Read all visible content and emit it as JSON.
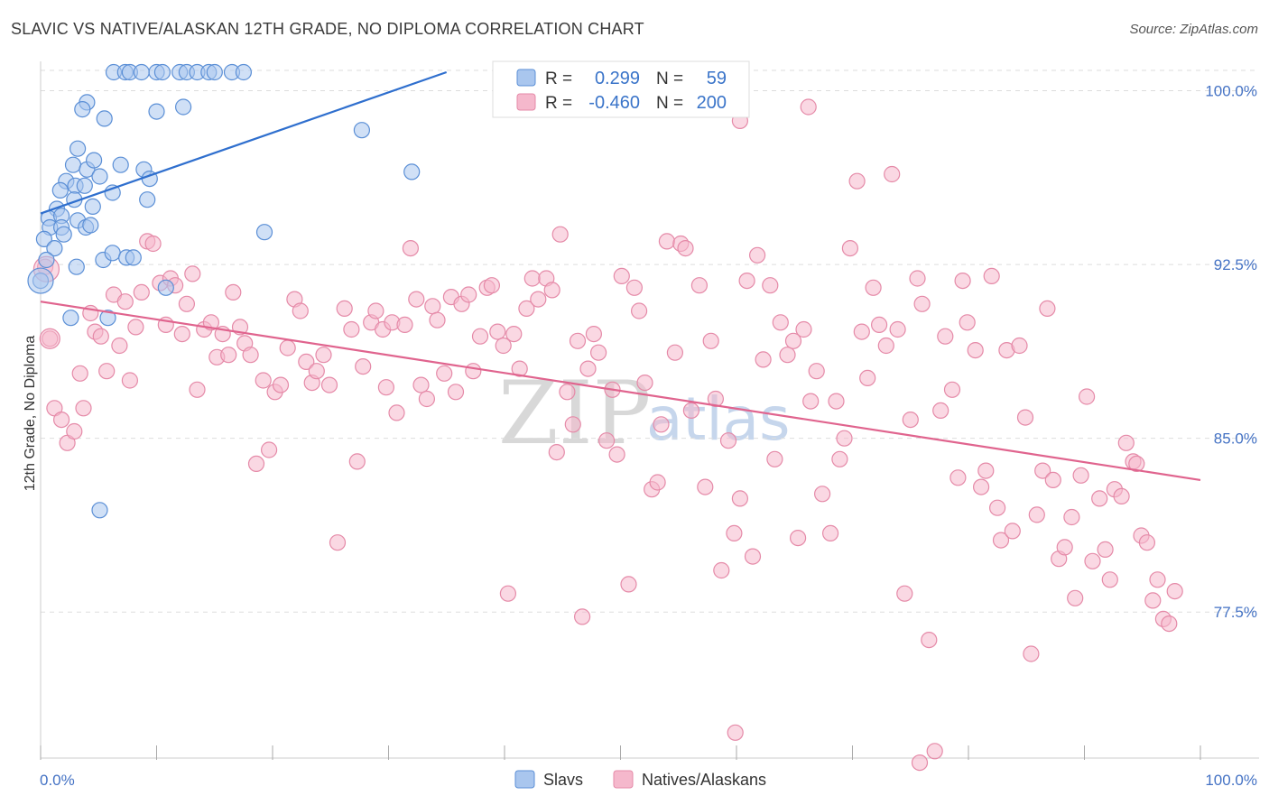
{
  "title": "SLAVIC VS NATIVE/ALASKAN 12TH GRADE, NO DIPLOMA CORRELATION CHART",
  "source": "Source: ZipAtlas.com",
  "colors": {
    "slavs_fill": "#a9c6ee",
    "slavs_stroke": "#5b8fd6",
    "slavs_line": "#2f6fce",
    "natives_fill": "#f5b8cc",
    "natives_stroke": "#e58aa8",
    "natives_line": "#e0648e",
    "grid": "#dddddd",
    "tick_label": "#4472c4"
  },
  "chart_data": {
    "type": "scatter",
    "title": "SLAVIC VS NATIVE/ALASKAN 12TH GRADE, NO DIPLOMA CORRELATION CHART",
    "xlabel": "",
    "ylabel": "12th Grade, No Diploma",
    "xlim": [
      0,
      100
    ],
    "ylim": [
      71.2,
      100.8
    ],
    "x_tick_labels": [
      "0.0%",
      "100.0%"
    ],
    "y_ticks": [
      77.5,
      85.0,
      92.5,
      100.0
    ],
    "y_tick_labels": [
      "77.5%",
      "85.0%",
      "92.5%",
      "100.0%"
    ],
    "legend": [
      {
        "label": "Slavs",
        "r_label": "R =",
        "r": "0.299",
        "n_label": "N =",
        "n": "59"
      },
      {
        "label": "Natives/Alaskans",
        "r_label": "R =",
        "r": "-0.460",
        "n_label": "N =",
        "n": "200"
      }
    ],
    "watermark": {
      "zip": "ZIP",
      "atlas": "atlas"
    },
    "series": [
      {
        "name": "Slavs",
        "trend": [
          [
            0,
            94.7
          ],
          [
            35,
            100.8
          ]
        ],
        "points": [
          [
            6.3,
            100.8
          ],
          [
            7.3,
            100.8
          ],
          [
            7.7,
            100.8
          ],
          [
            8.7,
            100.8
          ],
          [
            10.0,
            100.8
          ],
          [
            10.5,
            100.8
          ],
          [
            12.0,
            100.8
          ],
          [
            12.6,
            100.8
          ],
          [
            13.5,
            100.8
          ],
          [
            14.5,
            100.8
          ],
          [
            15.0,
            100.8
          ],
          [
            16.5,
            100.8
          ],
          [
            17.5,
            100.8
          ],
          [
            4.0,
            99.5
          ],
          [
            3.6,
            99.2
          ],
          [
            5.5,
            98.8
          ],
          [
            10.0,
            99.1
          ],
          [
            12.3,
            99.3
          ],
          [
            27.7,
            98.3
          ],
          [
            3.2,
            97.5
          ],
          [
            2.8,
            96.8
          ],
          [
            4.0,
            96.6
          ],
          [
            4.6,
            97.0
          ],
          [
            6.9,
            96.8
          ],
          [
            8.9,
            96.6
          ],
          [
            9.4,
            96.2
          ],
          [
            32.0,
            96.5
          ],
          [
            2.2,
            96.1
          ],
          [
            1.7,
            95.7
          ],
          [
            3.0,
            95.9
          ],
          [
            3.8,
            95.9
          ],
          [
            5.1,
            96.3
          ],
          [
            6.2,
            95.6
          ],
          [
            2.9,
            95.3
          ],
          [
            9.2,
            95.3
          ],
          [
            1.4,
            94.9
          ],
          [
            0.7,
            94.5
          ],
          [
            1.8,
            94.6
          ],
          [
            4.5,
            95.0
          ],
          [
            3.2,
            94.4
          ],
          [
            3.9,
            94.1
          ],
          [
            4.3,
            94.2
          ],
          [
            0.8,
            94.1
          ],
          [
            1.8,
            94.1
          ],
          [
            2.0,
            93.8
          ],
          [
            19.3,
            93.9
          ],
          [
            0.3,
            93.6
          ],
          [
            1.2,
            93.2
          ],
          [
            0.5,
            92.7
          ],
          [
            5.4,
            92.7
          ],
          [
            6.2,
            93.0
          ],
          [
            7.4,
            92.8
          ],
          [
            8.0,
            92.8
          ],
          [
            3.1,
            92.4
          ],
          [
            0.0,
            91.8
          ],
          [
            10.8,
            91.5
          ],
          [
            2.6,
            90.2
          ],
          [
            5.8,
            90.2
          ],
          [
            5.1,
            81.9
          ]
        ]
      },
      {
        "name": "Natives/Alaskans",
        "trend": [
          [
            0,
            90.9
          ],
          [
            100,
            83.2
          ]
        ],
        "points": [
          [
            0.4,
            92.4
          ],
          [
            0.8,
            89.3
          ],
          [
            1.2,
            86.3
          ],
          [
            1.8,
            85.8
          ],
          [
            2.3,
            84.8
          ],
          [
            2.9,
            85.3
          ],
          [
            3.4,
            87.8
          ],
          [
            3.7,
            86.3
          ],
          [
            4.3,
            90.4
          ],
          [
            4.7,
            89.6
          ],
          [
            5.2,
            89.4
          ],
          [
            5.7,
            87.9
          ],
          [
            6.3,
            91.2
          ],
          [
            6.8,
            89.0
          ],
          [
            7.3,
            90.9
          ],
          [
            7.7,
            87.5
          ],
          [
            8.2,
            89.8
          ],
          [
            8.7,
            91.3
          ],
          [
            9.2,
            93.5
          ],
          [
            9.7,
            93.4
          ],
          [
            10.3,
            91.7
          ],
          [
            10.8,
            89.9
          ],
          [
            11.2,
            91.9
          ],
          [
            11.6,
            91.6
          ],
          [
            12.2,
            89.5
          ],
          [
            12.6,
            90.8
          ],
          [
            13.1,
            92.1
          ],
          [
            13.5,
            87.1
          ],
          [
            14.1,
            89.7
          ],
          [
            14.7,
            90.0
          ],
          [
            15.2,
            88.5
          ],
          [
            15.7,
            89.5
          ],
          [
            16.2,
            88.6
          ],
          [
            16.6,
            91.3
          ],
          [
            17.2,
            89.8
          ],
          [
            17.6,
            89.1
          ],
          [
            18.1,
            88.6
          ],
          [
            18.6,
            83.9
          ],
          [
            19.2,
            87.5
          ],
          [
            19.7,
            84.5
          ],
          [
            20.2,
            87.0
          ],
          [
            20.7,
            87.3
          ],
          [
            21.3,
            88.9
          ],
          [
            21.9,
            91.0
          ],
          [
            22.4,
            90.5
          ],
          [
            22.9,
            88.3
          ],
          [
            23.4,
            87.4
          ],
          [
            23.8,
            87.9
          ],
          [
            24.4,
            88.6
          ],
          [
            24.9,
            87.3
          ],
          [
            25.6,
            80.5
          ],
          [
            26.2,
            90.6
          ],
          [
            26.8,
            89.7
          ],
          [
            27.3,
            84.0
          ],
          [
            27.8,
            88.1
          ],
          [
            28.5,
            90.0
          ],
          [
            28.9,
            90.5
          ],
          [
            29.5,
            89.7
          ],
          [
            29.8,
            87.2
          ],
          [
            30.3,
            90.0
          ],
          [
            30.7,
            86.1
          ],
          [
            31.4,
            89.9
          ],
          [
            31.9,
            93.2
          ],
          [
            32.4,
            91.0
          ],
          [
            32.8,
            87.3
          ],
          [
            33.3,
            86.7
          ],
          [
            33.8,
            90.7
          ],
          [
            34.2,
            90.1
          ],
          [
            34.8,
            87.8
          ],
          [
            35.4,
            91.1
          ],
          [
            35.8,
            87.0
          ],
          [
            36.3,
            90.8
          ],
          [
            36.9,
            91.2
          ],
          [
            37.3,
            87.9
          ],
          [
            37.9,
            89.4
          ],
          [
            38.5,
            91.5
          ],
          [
            38.9,
            91.6
          ],
          [
            39.4,
            89.6
          ],
          [
            39.9,
            89.0
          ],
          [
            40.3,
            78.3
          ],
          [
            40.8,
            89.5
          ],
          [
            41.3,
            88.0
          ],
          [
            41.9,
            90.6
          ],
          [
            42.4,
            91.9
          ],
          [
            42.9,
            91.0
          ],
          [
            43.6,
            91.9
          ],
          [
            44.1,
            91.4
          ],
          [
            44.5,
            84.4
          ],
          [
            44.8,
            93.8
          ],
          [
            45.4,
            87.0
          ],
          [
            45.9,
            85.6
          ],
          [
            46.3,
            89.2
          ],
          [
            46.7,
            77.3
          ],
          [
            47.2,
            88.0
          ],
          [
            47.7,
            89.5
          ],
          [
            48.1,
            88.7
          ],
          [
            48.8,
            84.9
          ],
          [
            49.3,
            87.1
          ],
          [
            49.7,
            84.3
          ],
          [
            50.1,
            92.0
          ],
          [
            50.7,
            78.7
          ],
          [
            51.2,
            91.5
          ],
          [
            51.6,
            90.5
          ],
          [
            52.1,
            87.4
          ],
          [
            52.7,
            82.8
          ],
          [
            53.2,
            83.1
          ],
          [
            53.5,
            85.6
          ],
          [
            54.0,
            93.5
          ],
          [
            54.7,
            88.7
          ],
          [
            55.2,
            93.4
          ],
          [
            55.6,
            93.2
          ],
          [
            56.1,
            86.2
          ],
          [
            56.8,
            91.6
          ],
          [
            57.3,
            82.9
          ],
          [
            57.8,
            89.2
          ],
          [
            58.2,
            86.7
          ],
          [
            58.7,
            79.3
          ],
          [
            59.3,
            84.9
          ],
          [
            59.8,
            80.9
          ],
          [
            60.3,
            82.4
          ],
          [
            60.9,
            91.8
          ],
          [
            61.4,
            79.9
          ],
          [
            61.8,
            92.9
          ],
          [
            62.3,
            88.4
          ],
          [
            62.9,
            91.6
          ],
          [
            63.3,
            84.1
          ],
          [
            63.8,
            90.0
          ],
          [
            64.4,
            88.6
          ],
          [
            64.9,
            89.2
          ],
          [
            65.3,
            80.7
          ],
          [
            65.8,
            89.7
          ],
          [
            66.4,
            86.6
          ],
          [
            66.9,
            87.9
          ],
          [
            67.4,
            82.6
          ],
          [
            68.1,
            80.9
          ],
          [
            68.6,
            86.6
          ],
          [
            68.9,
            84.1
          ],
          [
            69.3,
            85.0
          ],
          [
            69.8,
            93.2
          ],
          [
            70.4,
            96.1
          ],
          [
            70.8,
            89.6
          ],
          [
            71.3,
            87.6
          ],
          [
            71.8,
            91.5
          ],
          [
            72.3,
            89.9
          ],
          [
            72.9,
            89.0
          ],
          [
            73.4,
            96.4
          ],
          [
            73.9,
            89.7
          ],
          [
            74.5,
            78.3
          ],
          [
            75.0,
            85.8
          ],
          [
            75.6,
            91.9
          ],
          [
            76.0,
            90.8
          ],
          [
            76.6,
            76.3
          ],
          [
            77.1,
            71.5
          ],
          [
            77.6,
            86.2
          ],
          [
            78.0,
            89.4
          ],
          [
            78.6,
            87.1
          ],
          [
            79.1,
            83.3
          ],
          [
            79.5,
            91.8
          ],
          [
            79.9,
            90.0
          ],
          [
            80.6,
            88.8
          ],
          [
            81.1,
            82.9
          ],
          [
            81.5,
            83.6
          ],
          [
            82.0,
            92.0
          ],
          [
            82.5,
            82.0
          ],
          [
            82.8,
            80.6
          ],
          [
            83.3,
            88.8
          ],
          [
            83.8,
            81.0
          ],
          [
            84.4,
            89.0
          ],
          [
            84.9,
            85.9
          ],
          [
            85.4,
            75.7
          ],
          [
            85.9,
            81.7
          ],
          [
            86.4,
            83.6
          ],
          [
            86.8,
            90.6
          ],
          [
            87.3,
            83.2
          ],
          [
            87.8,
            79.8
          ],
          [
            88.3,
            80.3
          ],
          [
            88.9,
            81.6
          ],
          [
            89.2,
            78.1
          ],
          [
            89.7,
            83.4
          ],
          [
            90.2,
            86.8
          ],
          [
            90.7,
            79.7
          ],
          [
            91.3,
            82.4
          ],
          [
            91.8,
            80.2
          ],
          [
            92.2,
            78.9
          ],
          [
            92.6,
            82.8
          ],
          [
            93.2,
            82.5
          ],
          [
            93.6,
            84.8
          ],
          [
            94.2,
            84.0
          ],
          [
            94.5,
            83.9
          ],
          [
            94.9,
            80.8
          ],
          [
            95.4,
            80.5
          ],
          [
            95.9,
            78.0
          ],
          [
            96.3,
            78.9
          ],
          [
            96.8,
            77.2
          ],
          [
            97.3,
            77.0
          ],
          [
            97.8,
            78.4
          ],
          [
            59.9,
            72.3
          ],
          [
            75.8,
            71.0
          ],
          [
            60.3,
            98.7
          ],
          [
            66.2,
            99.3
          ]
        ]
      }
    ]
  }
}
